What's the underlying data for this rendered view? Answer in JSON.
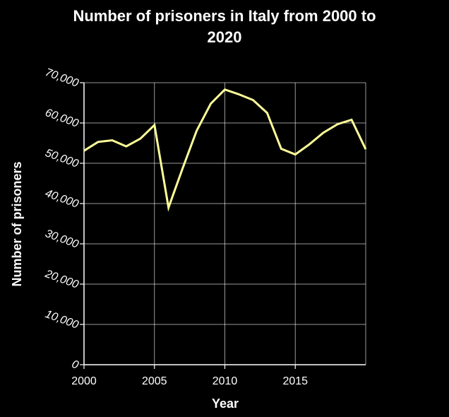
{
  "chart_data": {
    "type": "line",
    "title": "Number of prisoners in Italy from 2000 to 2020",
    "xlabel": "Year",
    "ylabel": "Number of prisoners",
    "xlim": [
      2000,
      2020
    ],
    "ylim": [
      0,
      70000
    ],
    "x_ticks": [
      2000,
      2005,
      2010,
      2015
    ],
    "x_tick_labels": [
      "2000",
      "2005",
      "2010",
      "2015"
    ],
    "y_ticks": [
      0,
      10000,
      20000,
      30000,
      40000,
      50000,
      60000,
      70000
    ],
    "y_tick_labels": [
      "0",
      "10,000",
      "20,000",
      "30,000",
      "40,000",
      "50,000",
      "60,000",
      "70,000"
    ],
    "grid": true,
    "line_color": "#ffff99",
    "background_color": "#000000",
    "grid_color": "#ffffff",
    "series": [
      {
        "x": [
          2000,
          2001,
          2002,
          2003,
          2004,
          2005,
          2006,
          2007,
          2008,
          2009,
          2010,
          2011,
          2012,
          2013,
          2014,
          2015,
          2016,
          2017,
          2018,
          2019,
          2020
        ],
        "values": [
          53100,
          55300,
          55700,
          54200,
          56100,
          59500,
          39000,
          48700,
          58100,
          64800,
          68300,
          67100,
          65700,
          62500,
          53600,
          52200,
          54700,
          57600,
          59700,
          60800,
          53500
        ]
      }
    ]
  }
}
